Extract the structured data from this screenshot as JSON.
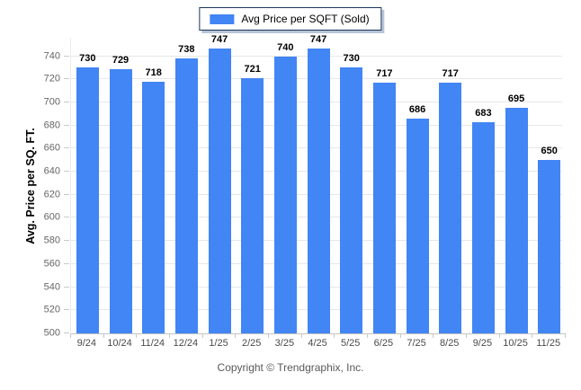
{
  "chart_data": {
    "type": "bar",
    "title": "",
    "xlabel": "",
    "ylabel": "Avg. Price per SQ. FT.",
    "legend": "Avg Price per SQFT (Sold)",
    "legend_position": "top-center",
    "grid": "horizontal",
    "categories": [
      "9/24",
      "10/24",
      "11/24",
      "12/24",
      "1/25",
      "2/25",
      "3/25",
      "4/25",
      "5/25",
      "6/25",
      "7/25",
      "8/25",
      "9/25",
      "10/25",
      "11/25"
    ],
    "values": [
      730,
      729,
      718,
      738,
      747,
      721,
      740,
      747,
      730,
      717,
      686,
      717,
      683,
      695,
      650
    ],
    "yticks": [
      500,
      520,
      540,
      560,
      580,
      600,
      620,
      640,
      660,
      680,
      700,
      720,
      740
    ],
    "ylim": [
      500,
      756
    ]
  },
  "footer": {
    "copyright": "Copyright © Trendgraphix, Inc."
  },
  "colors": {
    "bar": "#4285f4",
    "gridline": "#e7e7e7",
    "axis_line": "#c4c4c4",
    "tick_label": "#666666",
    "x_label": "#4a4a4a",
    "value_label": "#000000",
    "legend_border": "#17375d",
    "legend_shadow": "#b9c4d6",
    "copyright_text": "#595959"
  }
}
